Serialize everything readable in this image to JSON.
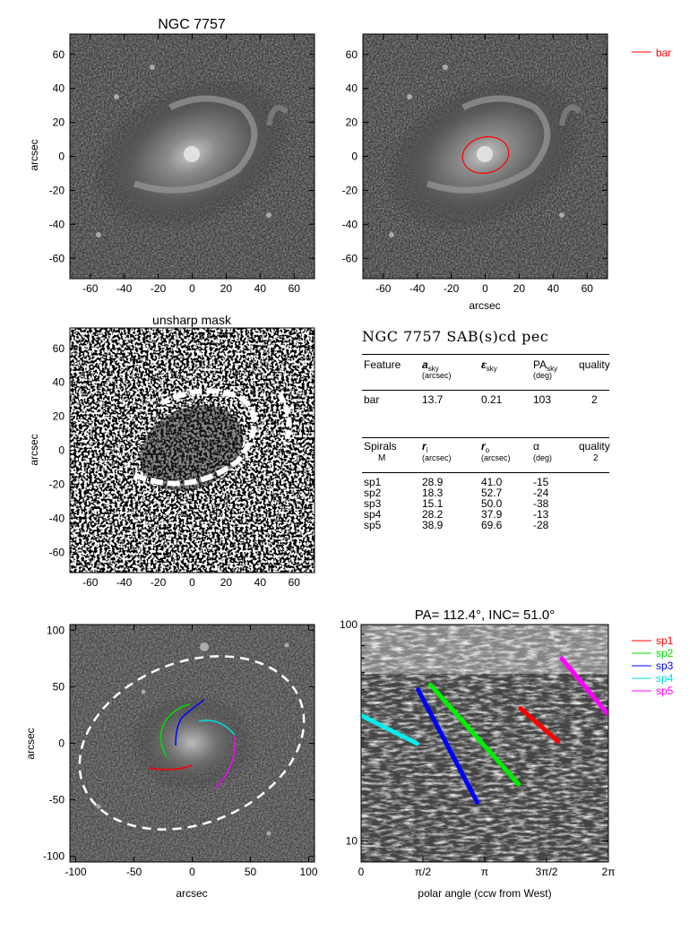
{
  "panels": {
    "image_title": "NGC 7757",
    "unsharp_title": "unsharp mask",
    "polar_title": "PA= 112.4°, INC=  51.0°",
    "ylabel": "arcsec",
    "xlabel": "arcsec",
    "polar_xlabel": "polar angle (ccw from West)"
  },
  "legend_top": {
    "label": "bar",
    "color": "#ff0000"
  },
  "legend_spirals": [
    {
      "label": "sp1",
      "color": "#ff0000"
    },
    {
      "label": "sp2",
      "color": "#00dd00"
    },
    {
      "label": "sp3",
      "color": "#0000ff"
    },
    {
      "label": "sp4",
      "color": "#00dddd"
    },
    {
      "label": "sp5",
      "color": "#ff00ff"
    }
  ],
  "table": {
    "title": "NGC 7757  SAB(s)cd pec",
    "bar_header": {
      "feature": "Feature",
      "a": "a",
      "a_sub": "sky",
      "a_unit": "(arcsec)",
      "eps": "ε",
      "eps_sub": "sky",
      "pa": "PA",
      "pa_sub": "sky",
      "pa_unit": "(deg)",
      "quality": "quality"
    },
    "bar_row": {
      "name": "bar",
      "a": "13.7",
      "eps": "0.21",
      "pa": "103",
      "quality": "2"
    },
    "spiral_header": {
      "label": "Spirals",
      "m_label": "M",
      "ri": "r",
      "ri_sub": "i",
      "ri_unit": "(arcsec)",
      "ro": "r",
      "ro_sub": "o",
      "ro_unit": "(arcsec)",
      "alpha": "α",
      "alpha_unit": "(deg)",
      "quality": "quality",
      "quality_value": "2"
    },
    "spiral_rows": [
      {
        "name": "sp1",
        "ri": "28.9",
        "ro": "41.0",
        "alpha": "-15"
      },
      {
        "name": "sp2",
        "ri": "18.3",
        "ro": "52.7",
        "alpha": "-24"
      },
      {
        "name": "sp3",
        "ri": "15.1",
        "ro": "50.0",
        "alpha": "-38"
      },
      {
        "name": "sp4",
        "ri": "28.2",
        "ro": "37.9",
        "alpha": "-13"
      },
      {
        "name": "sp5",
        "ri": "38.9",
        "ro": "69.6",
        "alpha": "-28"
      }
    ]
  },
  "axes": {
    "small_ticks": [
      "-60",
      "-40",
      "-20",
      "0",
      "20",
      "40",
      "60"
    ],
    "large_ticks": [
      "-100",
      "-50",
      "0",
      "50",
      "100"
    ],
    "polar_x_ticks": [
      "0",
      "π/2",
      "π",
      "3π/2",
      "2π"
    ],
    "polar_y_ticks": [
      "100",
      "10"
    ]
  },
  "chart_data": [
    {
      "type": "scatter",
      "title": "PA= 112.4°, INC=  51.0°",
      "xlabel": "polar angle (ccw from West)",
      "ylabel": "",
      "xlim": [
        0,
        6.2832
      ],
      "ylim": [
        8,
        100
      ],
      "yscale": "log",
      "series": [
        {
          "name": "sp1",
          "color": "#ff0000",
          "x": [
            4.05,
            5.0
          ],
          "y": [
            41.0,
            28.9
          ]
        },
        {
          "name": "sp2",
          "color": "#00ee00",
          "x": [
            1.76,
            4.0
          ],
          "y": [
            52.7,
            18.3
          ]
        },
        {
          "name": "sp3",
          "color": "#0000ff",
          "x": [
            1.45,
            2.95
          ],
          "y": [
            50.0,
            15.1
          ]
        },
        {
          "name": "sp4",
          "color": "#00eeee",
          "x": [
            0.02,
            1.42
          ],
          "y": [
            37.9,
            28.2
          ]
        },
        {
          "name": "sp5",
          "color": "#ff00ff",
          "x": [
            5.1,
            6.25
          ],
          "y": [
            69.6,
            38.9
          ]
        }
      ]
    }
  ]
}
